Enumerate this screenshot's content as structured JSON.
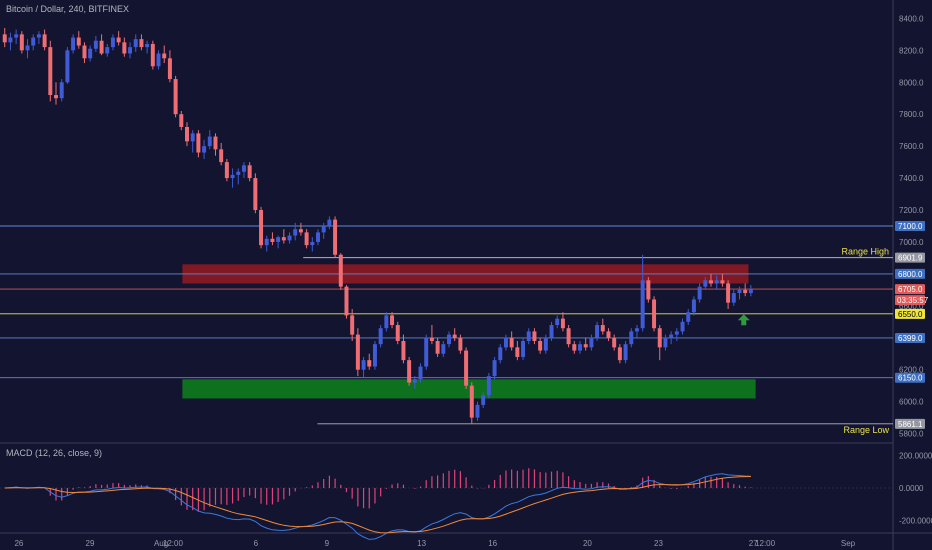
{
  "chart_data": {
    "type": "candlestick",
    "title": "Bitcoin / Dollar, 240, BITFINEX",
    "price_axis": {
      "ylim": [
        5760,
        8490
      ],
      "ticks": [
        5800,
        6000,
        6200,
        6400,
        6600,
        6800,
        7000,
        7200,
        7400,
        7600,
        7800,
        8000,
        8200,
        8400
      ],
      "tick_labels": [
        "5800.0",
        "6000.0",
        "6200.0",
        "6400.0",
        "6600.0",
        "6800.0",
        "7000.0",
        "7200.0",
        "7400.0",
        "7600.0",
        "7800.0",
        "8000.0",
        "8200.0",
        "8400.0"
      ]
    },
    "time_axis": {
      "labels": [
        "26",
        "29",
        "Aug",
        "12:00",
        "6",
        "9",
        "13",
        "16",
        "20",
        "23",
        "27",
        "12:00",
        "Sep"
      ],
      "label_pos": [
        0.0,
        3.0,
        6.0,
        6.5,
        10.0,
        13.0,
        17.0,
        20.0,
        24.0,
        27.0,
        31.0,
        31.5,
        35.0
      ],
      "xlim": [
        -0.8,
        36.9
      ]
    },
    "candles_start": [
      -0.6,
      8300
    ],
    "candles": [
      [
        8300,
        8340,
        8220,
        8250
      ],
      [
        8250,
        8310,
        8200,
        8280
      ],
      [
        8280,
        8330,
        8240,
        8300
      ],
      [
        8300,
        8320,
        8180,
        8200
      ],
      [
        8200,
        8270,
        8150,
        8230
      ],
      [
        8230,
        8300,
        8200,
        8280
      ],
      [
        8280,
        8320,
        8240,
        8300
      ],
      [
        8300,
        8330,
        8200,
        8220
      ],
      [
        8220,
        8260,
        7880,
        7920
      ],
      [
        7920,
        8000,
        7860,
        7900
      ],
      [
        7900,
        8020,
        7880,
        8000
      ],
      [
        8000,
        8220,
        7990,
        8200
      ],
      [
        8200,
        8300,
        8180,
        8280
      ],
      [
        8280,
        8320,
        8210,
        8230
      ],
      [
        8230,
        8250,
        8120,
        8150
      ],
      [
        8150,
        8230,
        8130,
        8210
      ],
      [
        8210,
        8290,
        8190,
        8260
      ],
      [
        8260,
        8300,
        8170,
        8180
      ],
      [
        8180,
        8240,
        8160,
        8220
      ],
      [
        8220,
        8300,
        8200,
        8280
      ],
      [
        8280,
        8320,
        8230,
        8250
      ],
      [
        8250,
        8280,
        8160,
        8180
      ],
      [
        8180,
        8250,
        8150,
        8220
      ],
      [
        8220,
        8300,
        8190,
        8270
      ],
      [
        8270,
        8300,
        8200,
        8220
      ],
      [
        8220,
        8260,
        8180,
        8240
      ],
      [
        8240,
        8260,
        8080,
        8100
      ],
      [
        8100,
        8200,
        8080,
        8180
      ],
      [
        8180,
        8230,
        8120,
        8150
      ],
      [
        8150,
        8200,
        8000,
        8020
      ],
      [
        8020,
        8040,
        7780,
        7800
      ],
      [
        7800,
        7820,
        7700,
        7720
      ],
      [
        7720,
        7750,
        7600,
        7630
      ],
      [
        7630,
        7700,
        7560,
        7680
      ],
      [
        7680,
        7700,
        7530,
        7560
      ],
      [
        7560,
        7640,
        7520,
        7600
      ],
      [
        7600,
        7700,
        7580,
        7660
      ],
      [
        7660,
        7680,
        7540,
        7580
      ],
      [
        7580,
        7620,
        7480,
        7500
      ],
      [
        7500,
        7520,
        7380,
        7400
      ],
      [
        7400,
        7460,
        7340,
        7420
      ],
      [
        7420,
        7460,
        7360,
        7440
      ],
      [
        7440,
        7500,
        7400,
        7480
      ],
      [
        7480,
        7500,
        7380,
        7400
      ],
      [
        7400,
        7430,
        7180,
        7200
      ],
      [
        7200,
        7220,
        6960,
        6980
      ],
      [
        6980,
        7040,
        6940,
        7020
      ],
      [
        7020,
        7060,
        6980,
        7000
      ],
      [
        7000,
        7040,
        6960,
        7030
      ],
      [
        7030,
        7080,
        6990,
        7010
      ],
      [
        7010,
        7060,
        6990,
        7040
      ],
      [
        7040,
        7120,
        7010,
        7080
      ],
      [
        7080,
        7120,
        7040,
        7060
      ],
      [
        7060,
        7080,
        6960,
        6980
      ],
      [
        6980,
        7030,
        6940,
        7000
      ],
      [
        7000,
        7080,
        6980,
        7060
      ],
      [
        7060,
        7120,
        7020,
        7100
      ],
      [
        7100,
        7160,
        7080,
        7140
      ],
      [
        7140,
        7160,
        6900,
        6920
      ],
      [
        6920,
        6930,
        6700,
        6720
      ],
      [
        6720,
        6730,
        6520,
        6540
      ],
      [
        6540,
        6580,
        6380,
        6420
      ],
      [
        6420,
        6460,
        6160,
        6200
      ],
      [
        6200,
        6280,
        6150,
        6260
      ],
      [
        6260,
        6300,
        6200,
        6220
      ],
      [
        6220,
        6380,
        6200,
        6360
      ],
      [
        6360,
        6480,
        6340,
        6460
      ],
      [
        6460,
        6560,
        6440,
        6540
      ],
      [
        6540,
        6560,
        6460,
        6480
      ],
      [
        6480,
        6500,
        6360,
        6380
      ],
      [
        6380,
        6420,
        6240,
        6260
      ],
      [
        6260,
        6280,
        6100,
        6120
      ],
      [
        6120,
        6160,
        6080,
        6140
      ],
      [
        6140,
        6240,
        6120,
        6220
      ],
      [
        6220,
        6420,
        6200,
        6400
      ],
      [
        6400,
        6480,
        6360,
        6380
      ],
      [
        6380,
        6400,
        6280,
        6300
      ],
      [
        6300,
        6380,
        6280,
        6360
      ],
      [
        6360,
        6440,
        6340,
        6420
      ],
      [
        6420,
        6460,
        6380,
        6400
      ],
      [
        6400,
        6420,
        6300,
        6320
      ],
      [
        6320,
        6340,
        6080,
        6100
      ],
      [
        6100,
        6120,
        5860,
        5900
      ],
      [
        5900,
        6000,
        5880,
        5980
      ],
      [
        5980,
        6060,
        5960,
        6040
      ],
      [
        6040,
        6180,
        6020,
        6160
      ],
      [
        6160,
        6280,
        6140,
        6260
      ],
      [
        6260,
        6360,
        6240,
        6340
      ],
      [
        6340,
        6420,
        6320,
        6400
      ],
      [
        6400,
        6440,
        6320,
        6340
      ],
      [
        6340,
        6380,
        6260,
        6280
      ],
      [
        6280,
        6400,
        6260,
        6380
      ],
      [
        6380,
        6460,
        6360,
        6440
      ],
      [
        6440,
        6460,
        6360,
        6380
      ],
      [
        6380,
        6400,
        6300,
        6320
      ],
      [
        6320,
        6420,
        6300,
        6400
      ],
      [
        6400,
        6500,
        6380,
        6480
      ],
      [
        6480,
        6540,
        6460,
        6520
      ],
      [
        6520,
        6560,
        6440,
        6460
      ],
      [
        6460,
        6480,
        6340,
        6360
      ],
      [
        6360,
        6380,
        6300,
        6320
      ],
      [
        6320,
        6380,
        6300,
        6360
      ],
      [
        6360,
        6400,
        6320,
        6340
      ],
      [
        6340,
        6420,
        6320,
        6400
      ],
      [
        6400,
        6500,
        6380,
        6480
      ],
      [
        6480,
        6520,
        6420,
        6440
      ],
      [
        6440,
        6460,
        6380,
        6400
      ],
      [
        6400,
        6420,
        6320,
        6340
      ],
      [
        6340,
        6360,
        6240,
        6260
      ],
      [
        6260,
        6380,
        6240,
        6360
      ],
      [
        6360,
        6460,
        6340,
        6440
      ],
      [
        6440,
        6480,
        6400,
        6460
      ],
      [
        6460,
        6920,
        6440,
        6760
      ],
      [
        6760,
        6780,
        6620,
        6640
      ],
      [
        6640,
        6660,
        6440,
        6460
      ],
      [
        6460,
        6480,
        6260,
        6340
      ],
      [
        6340,
        6420,
        6320,
        6400
      ],
      [
        6400,
        6440,
        6360,
        6420
      ],
      [
        6420,
        6460,
        6380,
        6440
      ],
      [
        6440,
        6520,
        6420,
        6500
      ],
      [
        6500,
        6580,
        6480,
        6560
      ],
      [
        6560,
        6660,
        6540,
        6640
      ],
      [
        6640,
        6740,
        6620,
        6720
      ],
      [
        6720,
        6780,
        6700,
        6760
      ],
      [
        6760,
        6800,
        6720,
        6740
      ],
      [
        6740,
        6790,
        6700,
        6760
      ],
      [
        6760,
        6800,
        6720,
        6740
      ],
      [
        6740,
        6760,
        6580,
        6620
      ],
      [
        6620,
        6700,
        6600,
        6680
      ],
      [
        6680,
        6720,
        6640,
        6700
      ],
      [
        6700,
        6740,
        6660,
        6680
      ],
      [
        6680,
        6730,
        6660,
        6705
      ]
    ],
    "horizontal_lines": [
      {
        "price": 7100,
        "color": "#5b8ad6"
      },
      {
        "price": 6800,
        "color": "#5b8ad6"
      },
      {
        "price": 6705,
        "color": "#d05a5a"
      },
      {
        "price": 6550,
        "color": "#e8e34a"
      },
      {
        "price": 6399,
        "color": "#5b8ad6"
      },
      {
        "price": 6150,
        "color": "#5b8ad6"
      }
    ],
    "range_lines": [
      {
        "price": 6901.9,
        "from_t": 12.0,
        "label": "Range High"
      },
      {
        "price": 5861.1,
        "from_t": 12.6,
        "label": "Range Low"
      }
    ],
    "zones": [
      {
        "from": 6740,
        "to": 6860,
        "t0": 6.9,
        "t1": 30.8,
        "color": "#8b1a24"
      },
      {
        "from": 6020,
        "to": 6140,
        "t0": 6.9,
        "t1": 31.1,
        "color": "#0e7a1c"
      }
    ],
    "price_tags": [
      {
        "price": 7100,
        "label": "7100.0",
        "bg": "#3d6fc2",
        "fg": "#ffffff"
      },
      {
        "price": 6901.9,
        "label": "6901.9",
        "bg": "#9598a1",
        "fg": "#ffffff"
      },
      {
        "price": 6800,
        "label": "6800.0",
        "bg": "#3d6fc2",
        "fg": "#ffffff"
      },
      {
        "price": 6705,
        "label": "6705.0",
        "bg": "#e05a5a",
        "fg": "#ffffff"
      },
      {
        "price": 6550,
        "label": "6550.0",
        "bg": "#f0e63b",
        "fg": "#000000"
      },
      {
        "price": 6399,
        "label": "6399.0",
        "bg": "#3d6fc2",
        "fg": "#ffffff"
      },
      {
        "price": 6150,
        "label": "6150.0",
        "bg": "#3d6fc2",
        "fg": "#ffffff"
      },
      {
        "price": 5861.1,
        "label": "5861.1",
        "bg": "#9598a1",
        "fg": "#ffffff"
      }
    ],
    "countdown": {
      "label": "03:35:57",
      "bg": "#e05a5a",
      "fg": "#ffffff"
    },
    "arrow": {
      "t": 30.6,
      "price": 6510,
      "color": "#2e9b3e"
    },
    "colors": {
      "up": "#3f5bd6",
      "down": "#ee6e73",
      "support": "#0e7a1c",
      "resistance": "#8b1a24"
    },
    "macd": {
      "title": "MACD (12, 26, close, 9)",
      "ylim": [
        -260,
        260
      ],
      "ticks": [
        200,
        0,
        -200
      ],
      "tick_labels": [
        "200.0000",
        "0.0000",
        "-200.0000"
      ],
      "macd_color": "#3a7ae0",
      "signal_color": "#f08a3c",
      "hist_color": "#e0437a"
    }
  }
}
